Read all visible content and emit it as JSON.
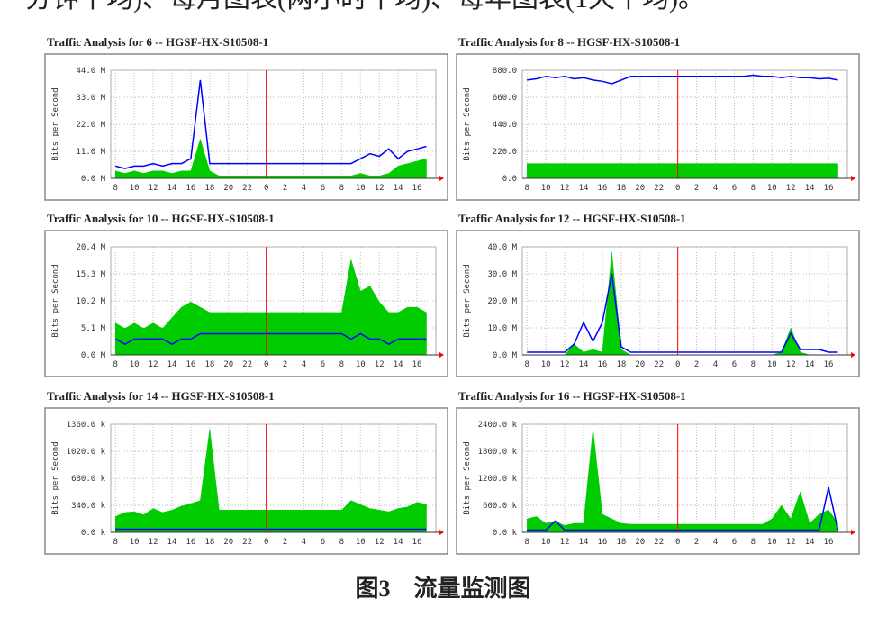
{
  "text_line": "分钟平均)、每月图表(两小时平均)、每年图表(1天平均)。",
  "caption": "图3　流量监测图",
  "chart_data": [
    {
      "type": "area",
      "title": "Traffic Analysis for 6 -- HGSF-HX-S10508-1",
      "y_label": "Bits per Second",
      "x": [
        8,
        9,
        10,
        11,
        12,
        13,
        14,
        15,
        16,
        17,
        18,
        19,
        20,
        21,
        22,
        23,
        24,
        25,
        26,
        27,
        28,
        29,
        30,
        31,
        32,
        33,
        34,
        35,
        36,
        37,
        38,
        39,
        40,
        41
      ],
      "xlim": [
        7.5,
        42
      ],
      "xticks": [
        8,
        10,
        12,
        14,
        16,
        18,
        20,
        22,
        {
          "value": 24,
          "label": "0"
        },
        {
          "value": 26,
          "label": "2"
        },
        {
          "value": 28,
          "label": "4"
        },
        {
          "value": 30,
          "label": "6"
        },
        {
          "value": 32,
          "label": "8"
        },
        {
          "value": 34,
          "label": "10"
        },
        {
          "value": 36,
          "label": "12"
        },
        {
          "value": 38,
          "label": "14"
        },
        {
          "value": 40,
          "label": "16"
        }
      ],
      "ylim": [
        0,
        44
      ],
      "yticks": [
        {
          "value": 0,
          "label": "0.0 M"
        },
        {
          "value": 11,
          "label": "11.0 M"
        },
        {
          "value": 22,
          "label": "22.0 M"
        },
        {
          "value": 33,
          "label": "33.0 M"
        },
        {
          "value": 44,
          "label": "44.0 M"
        }
      ],
      "grid": true,
      "vline": 24,
      "series": [
        {
          "color": "#00cc00",
          "style": "area",
          "values": [
            3,
            2,
            3,
            2,
            3,
            3,
            2,
            3,
            3,
            16,
            3,
            1,
            1,
            1,
            1,
            1,
            1,
            1,
            1,
            1,
            1,
            1,
            1,
            1,
            1,
            1,
            2,
            1,
            1,
            2,
            5,
            6,
            7,
            8
          ]
        },
        {
          "color": "#0000ff",
          "style": "line",
          "values": [
            5,
            4,
            5,
            5,
            6,
            5,
            6,
            6,
            8,
            40,
            6,
            6,
            6,
            6,
            6,
            6,
            6,
            6,
            6,
            6,
            6,
            6,
            6,
            6,
            6,
            6,
            8,
            10,
            9,
            12,
            8,
            11,
            12,
            13
          ]
        }
      ]
    },
    {
      "type": "area",
      "title": "Traffic Analysis for 8 -- HGSF-HX-S10508-1",
      "y_label": "Bits per Second",
      "x": [
        8,
        9,
        10,
        11,
        12,
        13,
        14,
        15,
        16,
        17,
        18,
        19,
        20,
        21,
        22,
        23,
        24,
        25,
        26,
        27,
        28,
        29,
        30,
        31,
        32,
        33,
        34,
        35,
        36,
        37,
        38,
        39,
        40,
        41
      ],
      "xlim": [
        7.5,
        42
      ],
      "xticks": [
        8,
        10,
        12,
        14,
        16,
        18,
        20,
        22,
        {
          "value": 24,
          "label": "0"
        },
        {
          "value": 26,
          "label": "2"
        },
        {
          "value": 28,
          "label": "4"
        },
        {
          "value": 30,
          "label": "6"
        },
        {
          "value": 32,
          "label": "8"
        },
        {
          "value": 34,
          "label": "10"
        },
        {
          "value": 36,
          "label": "12"
        },
        {
          "value": 38,
          "label": "14"
        },
        {
          "value": 40,
          "label": "16"
        }
      ],
      "ylim": [
        0,
        880
      ],
      "yticks": [
        {
          "value": 0,
          "label": "0.0"
        },
        {
          "value": 220,
          "label": "220.0"
        },
        {
          "value": 440,
          "label": "440.0"
        },
        {
          "value": 660,
          "label": "660.0"
        },
        {
          "value": 880,
          "label": "880.0"
        }
      ],
      "grid": true,
      "vline": 24,
      "series": [
        {
          "color": "#00cc00",
          "style": "area",
          "values": [
            120,
            120,
            120,
            120,
            120,
            120,
            120,
            120,
            120,
            120,
            120,
            120,
            120,
            120,
            120,
            120,
            120,
            120,
            120,
            120,
            120,
            120,
            120,
            120,
            120,
            120,
            120,
            120,
            120,
            120,
            120,
            120,
            120,
            120
          ]
        },
        {
          "color": "#0000ff",
          "style": "line",
          "values": [
            800,
            810,
            830,
            820,
            830,
            810,
            820,
            800,
            790,
            770,
            800,
            830,
            830,
            830,
            830,
            830,
            830,
            830,
            830,
            830,
            830,
            830,
            830,
            830,
            840,
            830,
            830,
            820,
            830,
            820,
            820,
            810,
            815,
            800
          ]
        }
      ]
    },
    {
      "type": "area",
      "title": "Traffic Analysis for 10 -- HGSF-HX-S10508-1",
      "y_label": "Bits per Second",
      "x": [
        8,
        9,
        10,
        11,
        12,
        13,
        14,
        15,
        16,
        17,
        18,
        19,
        20,
        21,
        22,
        23,
        24,
        25,
        26,
        27,
        28,
        29,
        30,
        31,
        32,
        33,
        34,
        35,
        36,
        37,
        38,
        39,
        40,
        41
      ],
      "xlim": [
        7.5,
        42
      ],
      "xticks": [
        8,
        10,
        12,
        14,
        16,
        18,
        20,
        22,
        {
          "value": 24,
          "label": "0"
        },
        {
          "value": 26,
          "label": "2"
        },
        {
          "value": 28,
          "label": "4"
        },
        {
          "value": 30,
          "label": "6"
        },
        {
          "value": 32,
          "label": "8"
        },
        {
          "value": 34,
          "label": "10"
        },
        {
          "value": 36,
          "label": "12"
        },
        {
          "value": 38,
          "label": "14"
        },
        {
          "value": 40,
          "label": "16"
        }
      ],
      "ylim": [
        0,
        20.4
      ],
      "yticks": [
        {
          "value": 0,
          "label": "0.0 M"
        },
        {
          "value": 5.1,
          "label": "5.1 M"
        },
        {
          "value": 10.2,
          "label": "10.2 M"
        },
        {
          "value": 15.3,
          "label": "15.3 M"
        },
        {
          "value": 20.4,
          "label": "20.4 M"
        }
      ],
      "grid": true,
      "vline": 24,
      "series": [
        {
          "color": "#00cc00",
          "style": "area",
          "values": [
            6,
            5,
            6,
            5,
            6,
            5,
            7,
            9,
            10,
            9,
            8,
            8,
            8,
            8,
            8,
            8,
            8,
            8,
            8,
            8,
            8,
            8,
            8,
            8,
            8,
            18,
            12,
            13,
            10,
            8,
            8,
            9,
            9,
            8
          ]
        },
        {
          "color": "#0000ff",
          "style": "line",
          "values": [
            3,
            2,
            3,
            3,
            3,
            3,
            2,
            3,
            3,
            4,
            4,
            4,
            4,
            4,
            4,
            4,
            4,
            4,
            4,
            4,
            4,
            4,
            4,
            4,
            4,
            3,
            4,
            3,
            3,
            2,
            3,
            3,
            3,
            3
          ]
        }
      ]
    },
    {
      "type": "area",
      "title": "Traffic Analysis for 12 -- HGSF-HX-S10508-1",
      "y_label": "Bits per Second",
      "x": [
        8,
        9,
        10,
        11,
        12,
        13,
        14,
        15,
        16,
        17,
        18,
        19,
        20,
        21,
        22,
        23,
        24,
        25,
        26,
        27,
        28,
        29,
        30,
        31,
        32,
        33,
        34,
        35,
        36,
        37,
        38,
        39,
        40,
        41
      ],
      "xlim": [
        7.5,
        42
      ],
      "xticks": [
        8,
        10,
        12,
        14,
        16,
        18,
        20,
        22,
        {
          "value": 24,
          "label": "0"
        },
        {
          "value": 26,
          "label": "2"
        },
        {
          "value": 28,
          "label": "4"
        },
        {
          "value": 30,
          "label": "6"
        },
        {
          "value": 32,
          "label": "8"
        },
        {
          "value": 34,
          "label": "10"
        },
        {
          "value": 36,
          "label": "12"
        },
        {
          "value": 38,
          "label": "14"
        },
        {
          "value": 40,
          "label": "16"
        }
      ],
      "ylim": [
        0,
        40
      ],
      "yticks": [
        {
          "value": 0,
          "label": "0.0 M"
        },
        {
          "value": 10,
          "label": "10.0 M"
        },
        {
          "value": 20,
          "label": "20.0 M"
        },
        {
          "value": 30,
          "label": "30.0 M"
        },
        {
          "value": 40,
          "label": "40.0 M"
        }
      ],
      "grid": true,
      "vline": 24,
      "series": [
        {
          "color": "#00cc00",
          "style": "area",
          "values": [
            0,
            0,
            0,
            0,
            0,
            4,
            1,
            2,
            1,
            38,
            2,
            0,
            0,
            0,
            0,
            0,
            0,
            0,
            0,
            0,
            0,
            0,
            0,
            0,
            0,
            0,
            0,
            1,
            10,
            1,
            0,
            0,
            0,
            0
          ]
        },
        {
          "color": "#0000ff",
          "style": "line",
          "values": [
            1,
            1,
            1,
            1,
            1,
            4,
            12,
            5,
            12,
            30,
            3,
            1,
            1,
            1,
            1,
            1,
            1,
            1,
            1,
            1,
            1,
            1,
            1,
            1,
            1,
            1,
            1,
            1,
            8,
            2,
            2,
            2,
            1,
            1
          ]
        }
      ]
    },
    {
      "type": "area",
      "title": "Traffic Analysis for 14 -- HGSF-HX-S10508-1",
      "y_label": "Bits per Second",
      "x": [
        8,
        9,
        10,
        11,
        12,
        13,
        14,
        15,
        16,
        17,
        18,
        19,
        20,
        21,
        22,
        23,
        24,
        25,
        26,
        27,
        28,
        29,
        30,
        31,
        32,
        33,
        34,
        35,
        36,
        37,
        38,
        39,
        40,
        41
      ],
      "xlim": [
        7.5,
        42
      ],
      "xticks": [
        8,
        10,
        12,
        14,
        16,
        18,
        20,
        22,
        {
          "value": 24,
          "label": "0"
        },
        {
          "value": 26,
          "label": "2"
        },
        {
          "value": 28,
          "label": "4"
        },
        {
          "value": 30,
          "label": "6"
        },
        {
          "value": 32,
          "label": "8"
        },
        {
          "value": 34,
          "label": "10"
        },
        {
          "value": 36,
          "label": "12"
        },
        {
          "value": 38,
          "label": "14"
        },
        {
          "value": 40,
          "label": "16"
        }
      ],
      "ylim": [
        0,
        1360
      ],
      "yticks": [
        {
          "value": 0,
          "label": "0.0 k"
        },
        {
          "value": 340,
          "label": "340.0 k"
        },
        {
          "value": 680,
          "label": "680.0 k"
        },
        {
          "value": 1020,
          "label": "1020.0 k"
        },
        {
          "value": 1360,
          "label": "1360.0 k"
        }
      ],
      "grid": true,
      "vline": 24,
      "series": [
        {
          "color": "#00cc00",
          "style": "area",
          "values": [
            200,
            250,
            260,
            220,
            300,
            250,
            280,
            330,
            360,
            400,
            1300,
            280,
            280,
            280,
            280,
            280,
            280,
            280,
            280,
            280,
            280,
            280,
            280,
            280,
            280,
            400,
            350,
            300,
            280,
            260,
            300,
            320,
            380,
            350
          ]
        },
        {
          "color": "#0000ff",
          "style": "line",
          "values": [
            40,
            40,
            40,
            40,
            40,
            40,
            40,
            40,
            40,
            40,
            40,
            40,
            40,
            40,
            40,
            40,
            40,
            40,
            40,
            40,
            40,
            40,
            40,
            40,
            40,
            40,
            40,
            40,
            40,
            40,
            40,
            40,
            40,
            40
          ]
        }
      ]
    },
    {
      "type": "area",
      "title": "Traffic Analysis for 16 -- HGSF-HX-S10508-1",
      "y_label": "Bits per Second",
      "x": [
        8,
        9,
        10,
        11,
        12,
        13,
        14,
        15,
        16,
        17,
        18,
        19,
        20,
        21,
        22,
        23,
        24,
        25,
        26,
        27,
        28,
        29,
        30,
        31,
        32,
        33,
        34,
        35,
        36,
        37,
        38,
        39,
        40,
        41
      ],
      "xlim": [
        7.5,
        42
      ],
      "xticks": [
        8,
        10,
        12,
        14,
        16,
        18,
        20,
        22,
        {
          "value": 24,
          "label": "0"
        },
        {
          "value": 26,
          "label": "2"
        },
        {
          "value": 28,
          "label": "4"
        },
        {
          "value": 30,
          "label": "6"
        },
        {
          "value": 32,
          "label": "8"
        },
        {
          "value": 34,
          "label": "10"
        },
        {
          "value": 36,
          "label": "12"
        },
        {
          "value": 38,
          "label": "14"
        },
        {
          "value": 40,
          "label": "16"
        }
      ],
      "ylim": [
        0,
        2400
      ],
      "yticks": [
        {
          "value": 0,
          "label": "0.0 k"
        },
        {
          "value": 600,
          "label": "600.0 k"
        },
        {
          "value": 1200,
          "label": "1200.0 k"
        },
        {
          "value": 1800,
          "label": "1800.0 k"
        },
        {
          "value": 2400,
          "label": "2400.0 k"
        }
      ],
      "grid": true,
      "vline": 24,
      "series": [
        {
          "color": "#00cc00",
          "style": "area",
          "values": [
            300,
            350,
            200,
            250,
            150,
            200,
            200,
            2300,
            400,
            300,
            200,
            180,
            180,
            180,
            180,
            180,
            180,
            180,
            180,
            180,
            180,
            180,
            180,
            180,
            180,
            180,
            300,
            600,
            300,
            900,
            200,
            400,
            500,
            200
          ]
        },
        {
          "color": "#0000ff",
          "style": "line",
          "values": [
            50,
            50,
            50,
            250,
            50,
            50,
            50,
            50,
            50,
            50,
            50,
            50,
            50,
            50,
            50,
            50,
            50,
            50,
            50,
            50,
            50,
            50,
            50,
            50,
            50,
            50,
            50,
            50,
            50,
            50,
            50,
            50,
            1000,
            50
          ]
        }
      ]
    }
  ]
}
